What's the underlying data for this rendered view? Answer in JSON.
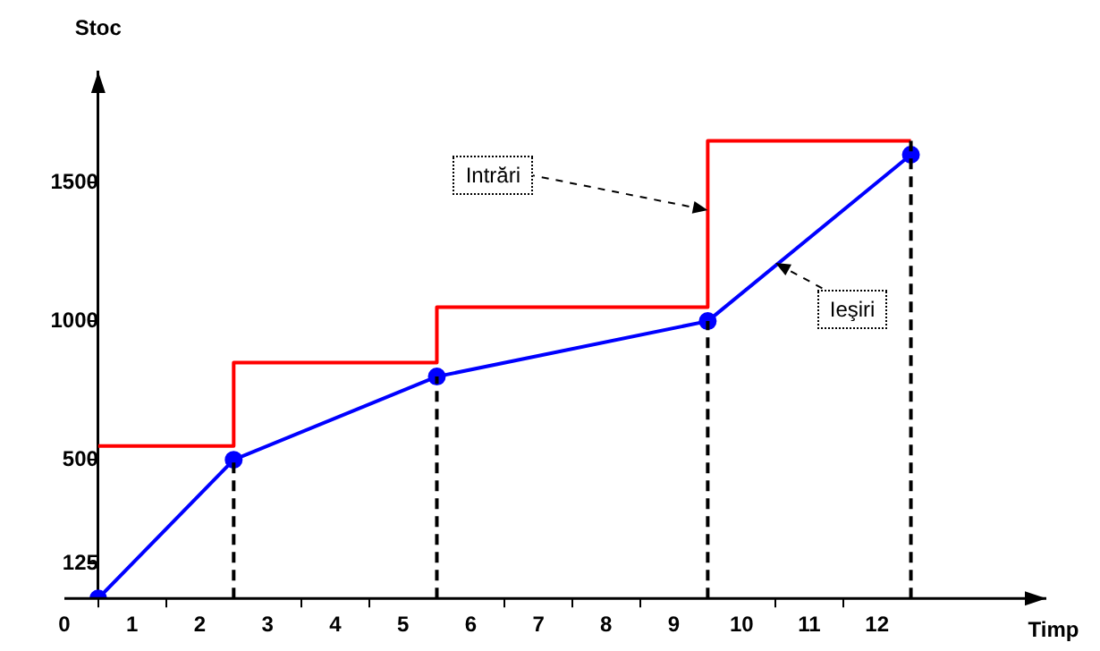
{
  "chart_data": {
    "type": "line",
    "xlabel": "Timp",
    "ylabel": "Stoc",
    "xlim": [
      0,
      14.5
    ],
    "ylim": [
      0,
      1900
    ],
    "xticks": [
      0,
      {
        "value": 0.5,
        "label": null
      },
      1,
      {
        "value": 1.5,
        "label": null
      },
      2,
      3,
      {
        "value": 3.5,
        "label": null
      },
      4,
      {
        "value": 4.5,
        "label": null
      },
      5,
      6,
      {
        "value": 6.5,
        "label": null
      },
      7,
      {
        "value": 7.5,
        "label": null
      },
      8,
      {
        "value": 8.5,
        "label": null
      },
      9,
      10,
      {
        "value": 10.5,
        "label": null
      },
      11,
      {
        "value": 11.5,
        "label": null
      },
      12
    ],
    "yticks": [
      125,
      500,
      1000,
      1500
    ],
    "grid": false,
    "legend": false,
    "series": [
      {
        "type": "step",
        "color": "#ff0000",
        "marker": "none",
        "x": [
          0.5,
          2.5,
          5.5,
          9.5,
          12.5
        ],
        "values": [
          550,
          850,
          1050,
          1650,
          1650
        ]
      },
      {
        "type": "line",
        "color": "#0000ff",
        "marker": "circle",
        "x": [
          0.5,
          2.5,
          5.5,
          9.5,
          12.5
        ],
        "values": [
          0,
          500,
          800,
          1000,
          1600
        ]
      },
      {
        "type": "line",
        "color": "#000000",
        "marker": "none",
        "line_style": "dashed",
        "x": [
          2.5,
          2.5
        ],
        "values": [
          0,
          500
        ]
      },
      {
        "type": "line",
        "color": "#000000",
        "marker": "none",
        "line_style": "dashed",
        "x": [
          5.5,
          5.5
        ],
        "values": [
          0,
          800
        ]
      },
      {
        "type": "line",
        "color": "#000000",
        "marker": "none",
        "line_style": "dashed",
        "x": [
          9.5,
          9.5
        ],
        "values": [
          0,
          1000
        ]
      },
      {
        "type": "line",
        "color": "#000000",
        "marker": "none",
        "line_style": "dashed",
        "x": [
          12.5,
          12.5
        ],
        "values": [
          0,
          1650
        ]
      }
    ],
    "annotations": [
      {
        "text": "Intrări",
        "x": 9.5,
        "y": 1400
      },
      {
        "text": "Ieşiri",
        "x": 10.5,
        "y": 1210
      }
    ]
  }
}
